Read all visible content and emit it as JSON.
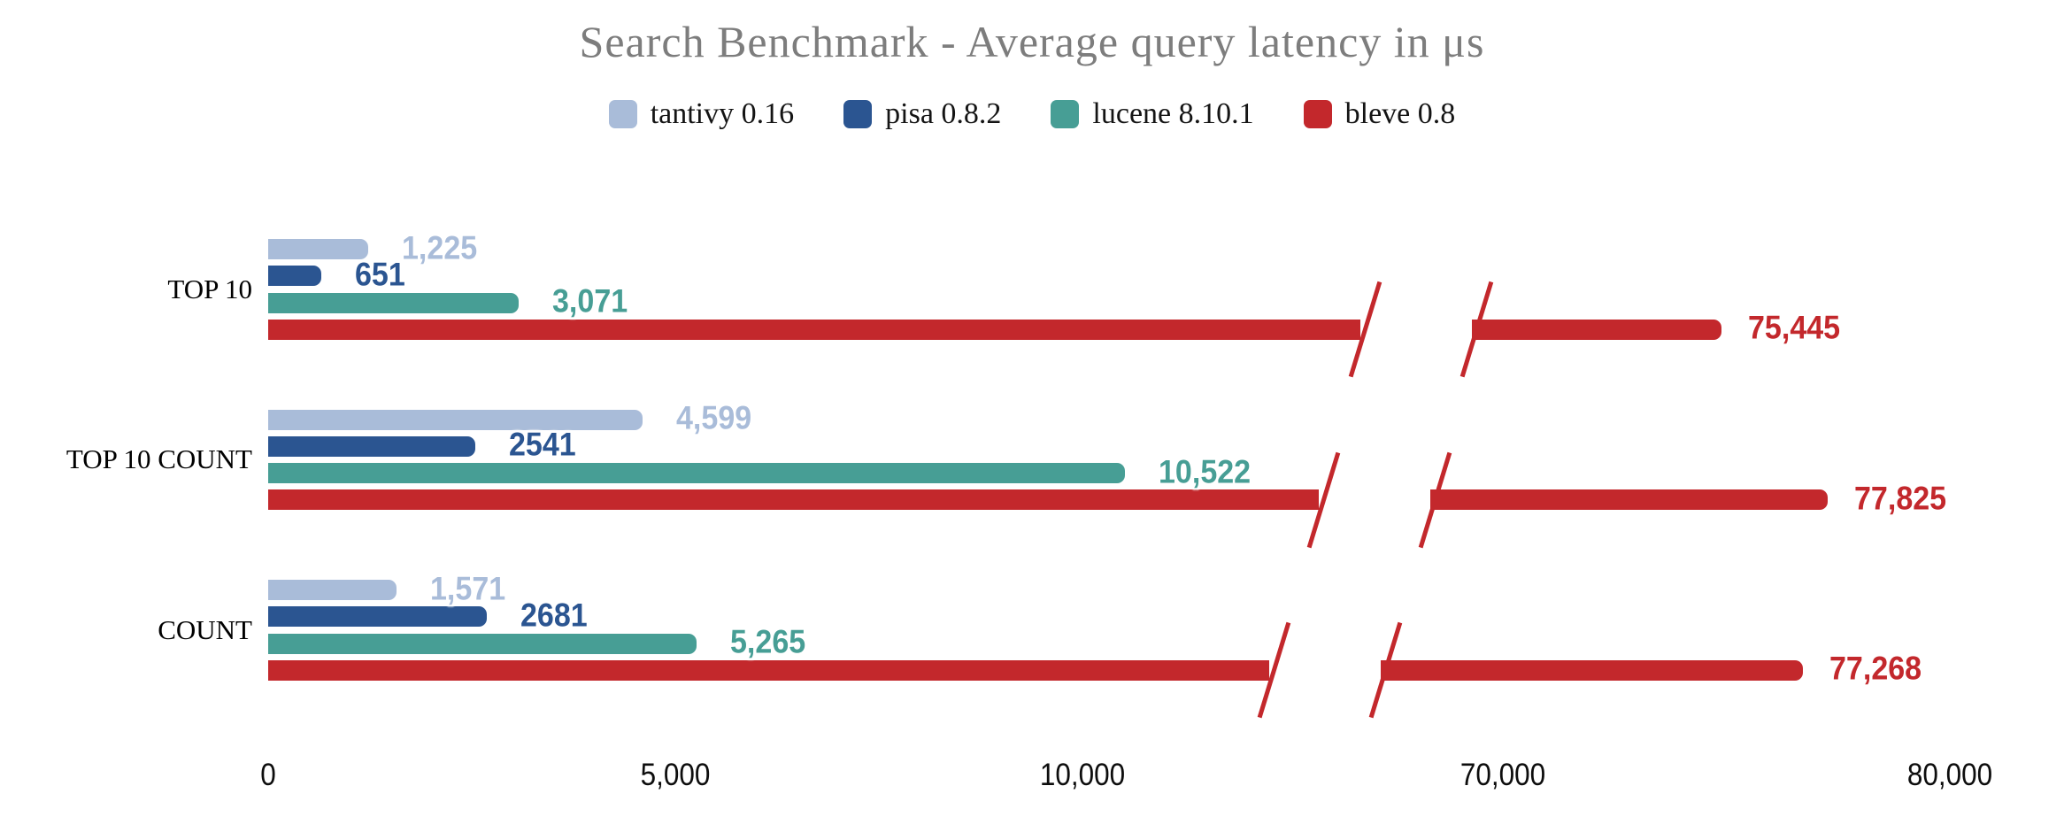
{
  "title": "Search Benchmark - Average query latency in μs",
  "chart_data": {
    "type": "bar",
    "orientation": "horizontal",
    "title": "Search Benchmark - Average query latency in μs",
    "unit": "μs",
    "grid": false,
    "legend_position": "top-center",
    "categories": [
      "TOP 10",
      "TOP 10 COUNT",
      "COUNT"
    ],
    "series": [
      {
        "name": "tantivy 0.16",
        "color": "#a9bcd9",
        "values": [
          1225,
          4599,
          1571
        ],
        "labels": [
          "1,225",
          "4,599",
          "1,571"
        ]
      },
      {
        "name": "pisa 0.8.2",
        "color": "#2b5591",
        "values": [
          651,
          2541,
          2681
        ],
        "labels": [
          "651",
          "2541",
          "2681"
        ]
      },
      {
        "name": "lucene 8.10.1",
        "color": "#479e95",
        "values": [
          3071,
          10522,
          5265
        ],
        "labels": [
          "3,071",
          "10,522",
          "5,265"
        ]
      },
      {
        "name": "bleve 0.8",
        "color": "#c3282c",
        "values": [
          75445,
          77825,
          77268
        ],
        "labels": [
          "75,445",
          "77,825",
          "77,268"
        ]
      }
    ],
    "x_axis": {
      "ticks": [
        {
          "value": 0,
          "label": "0"
        },
        {
          "value": 5000,
          "label": "5,000"
        },
        {
          "value": 10000,
          "label": "10,000"
        },
        {
          "value": 70000,
          "label": "70,000"
        },
        {
          "value": 80000,
          "label": "80,000"
        }
      ],
      "break": {
        "after_value": 13000,
        "resume_value": 69000
      },
      "broken_series": "bleve 0.8"
    }
  }
}
